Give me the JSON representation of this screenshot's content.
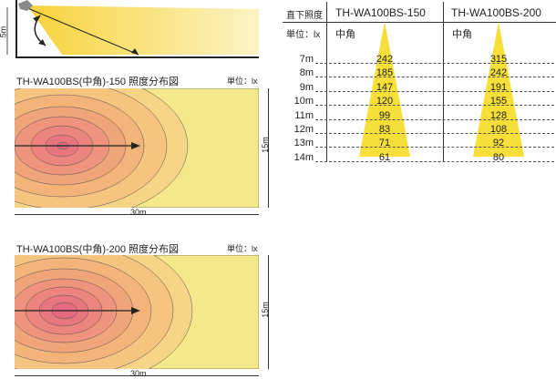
{
  "side_diagram": {
    "height_label": "5m"
  },
  "maps": [
    {
      "title": "TH-WA100BS(中角)-150 照度分布図",
      "unit": "単位：lx",
      "width_label": "30m",
      "depth_label": "15m"
    },
    {
      "title": "TH-WA100BS(中角)-200 照度分布図",
      "unit": "単位：lx",
      "width_label": "30m",
      "depth_label": "15m"
    }
  ],
  "table": {
    "corner": "直下照度",
    "unit": "単位：lx",
    "columns": [
      {
        "model": "TH-WA100BS-150",
        "beam": "中角",
        "values": [
          "242",
          "185",
          "147",
          "120",
          "99",
          "83",
          "71",
          "61"
        ]
      },
      {
        "model": "TH-WA100BS-200",
        "beam": "中角",
        "values": [
          "315",
          "242",
          "191",
          "155",
          "128",
          "108",
          "92",
          "80"
        ]
      }
    ],
    "distances": [
      "7m",
      "8m",
      "9m",
      "10m",
      "11m",
      "12m",
      "13m",
      "14m"
    ]
  },
  "colors": {
    "light": "#f5e88a",
    "mid": "#f5b97a",
    "warm": "#ee9a7a",
    "hot": "#e8737f",
    "cone": "#f7df3a"
  }
}
